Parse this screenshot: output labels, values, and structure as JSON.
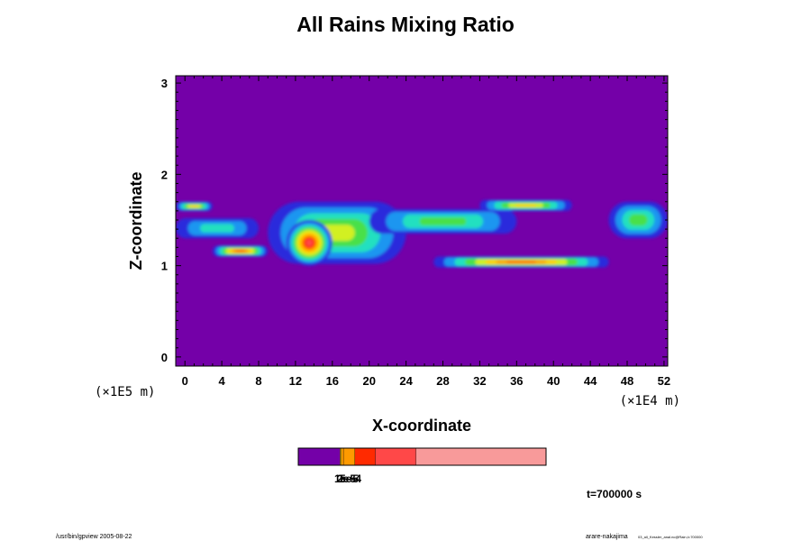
{
  "chart_data": {
    "type": "heatmap",
    "title": "All Rains Mixing Ratio",
    "xlabel": "X-coordinate",
    "ylabel": "Z-coordinate",
    "x_multiplier": "(×1E4 m)",
    "y_multiplier": "(×1E5 m)",
    "xlim": [
      -1,
      52.4
    ],
    "ylim": [
      -0.1,
      3.08
    ],
    "xticks": [
      "0",
      "4",
      "8",
      "12",
      "16",
      "20",
      "24",
      "28",
      "32",
      "36",
      "40",
      "44",
      "48",
      "52"
    ],
    "yticks": [
      "0",
      "1",
      "2",
      "3"
    ],
    "background_color": "#7400a8",
    "colormap": [
      "#7400a8",
      "#2a2adc",
      "#1e96f0",
      "#20e0c0",
      "#48e048",
      "#d2f020",
      "#ffd000",
      "#ff9a00",
      "#ff2a00",
      "#ff4848",
      "#f89a9a"
    ],
    "rain_bands": [
      {
        "x": [
          -1,
          3
        ],
        "z": [
          1.6,
          1.7
        ],
        "level": 6
      },
      {
        "x": [
          -1,
          8
        ],
        "z": [
          1.3,
          1.52
        ],
        "level": 3
      },
      {
        "x": [
          3,
          9
        ],
        "z": [
          1.1,
          1.22
        ],
        "level": 8
      },
      {
        "x": [
          9,
          24
        ],
        "z": [
          1.02,
          1.7
        ],
        "level": 5
      },
      {
        "x": [
          11,
          16
        ],
        "z": [
          1.0,
          1.5
        ],
        "level": 9
      },
      {
        "x": [
          20,
          36
        ],
        "z": [
          1.35,
          1.62
        ],
        "level": 4
      },
      {
        "x": [
          27,
          46
        ],
        "z": [
          0.98,
          1.1
        ],
        "level": 8
      },
      {
        "x": [
          32,
          42
        ],
        "z": [
          1.6,
          1.72
        ],
        "level": 6
      },
      {
        "x": [
          46,
          52.4
        ],
        "z": [
          1.3,
          1.7
        ],
        "level": 4
      }
    ],
    "colorbar": {
      "tick_labels": [
        "1e-5",
        "2e-5",
        "5e-4"
      ],
      "segments": [
        {
          "level": 0,
          "weight": 16.5
        },
        {
          "level": 6,
          "weight": 0.5
        },
        {
          "level": 7,
          "weight": 0.8
        },
        {
          "level": 7,
          "weight": 4.5
        },
        {
          "level": 8,
          "weight": 8
        },
        {
          "level": 9,
          "weight": 16
        },
        {
          "level": 10,
          "weight": 51
        }
      ]
    },
    "time_label": "t=700000 s"
  },
  "footer": {
    "left": "/usr/bin/gpview 2005-08-22",
    "right_main": "arare-nakajima",
    "right_small": "03_all_Kessler_anal.nc@Rain,t=700000"
  }
}
